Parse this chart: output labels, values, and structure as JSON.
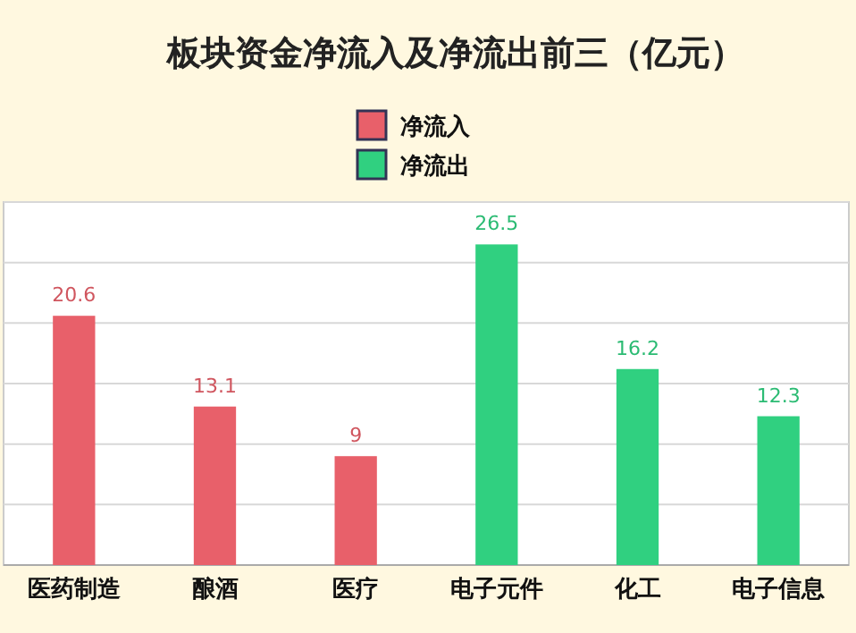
{
  "chart_data": {
    "type": "bar",
    "title": "板块资金净流入及净流出前三（亿元）",
    "categories": [
      "医药制造",
      "酿酒",
      "医疗",
      "电子元件",
      "化工",
      "电子信息"
    ],
    "series": [
      {
        "name": "净流入",
        "color": "#e8606a",
        "values": [
          20.6,
          13.1,
          9,
          null,
          null,
          null
        ]
      },
      {
        "name": "净流出",
        "color": "#30d080",
        "values": [
          null,
          null,
          null,
          26.5,
          16.2,
          12.3
        ]
      }
    ],
    "data_labels": true,
    "ylim": [
      0,
      30
    ],
    "yticks": [
      {
        "value": 0,
        "label": null
      },
      {
        "value": 5,
        "label": null
      },
      {
        "value": 10,
        "label": null
      },
      {
        "value": 15,
        "label": null
      },
      {
        "value": 20,
        "label": null
      },
      {
        "value": 25,
        "label": null
      },
      {
        "value": 30,
        "label": null
      }
    ],
    "tick_labels": "x",
    "grid": "y",
    "legend": "top"
  }
}
